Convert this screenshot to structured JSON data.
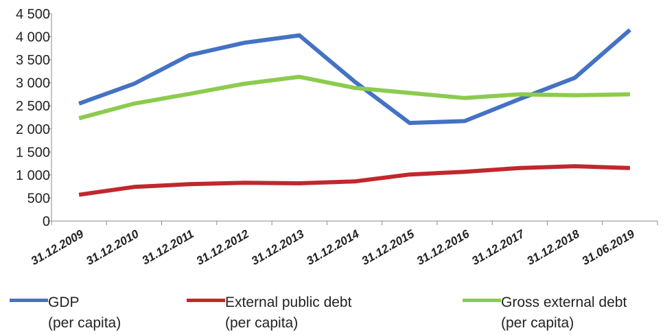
{
  "chart_data": {
    "type": "line",
    "title": "",
    "xlabel": "",
    "ylabel": "",
    "ylim": [
      0,
      4500
    ],
    "yticks": [
      0,
      500,
      1000,
      1500,
      2000,
      2500,
      3000,
      3500,
      4000,
      4500
    ],
    "ytick_labels": [
      "0",
      "500",
      "1 000",
      "1 500",
      "2 000",
      "2 500",
      "3 000",
      "3 500",
      "4 000",
      "4 500"
    ],
    "categories": [
      "31.12.2009",
      "31.12.2010",
      "31.12.2011",
      "31.12.2012",
      "31.12.2013",
      "31.12.2014",
      "31.12.2015",
      "31.12.2016",
      "31.12.2017",
      "31.12.2018",
      "31.06.2019"
    ],
    "grid": false,
    "legend_position": "bottom",
    "series": [
      {
        "name_line1": "GDP",
        "name_line2": "(per capita)",
        "color": "#4472C4",
        "values": [
          2550,
          2980,
          3600,
          3870,
          4030,
          3030,
          2130,
          2170,
          2650,
          3110,
          4150
        ]
      },
      {
        "name_line1": "External public debt",
        "name_line2": "(per capita)",
        "color": "#C0282D",
        "values": [
          570,
          740,
          800,
          830,
          820,
          860,
          1010,
          1070,
          1150,
          1190,
          1150
        ]
      },
      {
        "name_line1": "Gross external debt",
        "name_line2": "(per capita)",
        "color": "#8CCB4E",
        "values": [
          2230,
          2550,
          2760,
          2980,
          3130,
          2890,
          2780,
          2670,
          2750,
          2730,
          2750
        ]
      }
    ]
  }
}
